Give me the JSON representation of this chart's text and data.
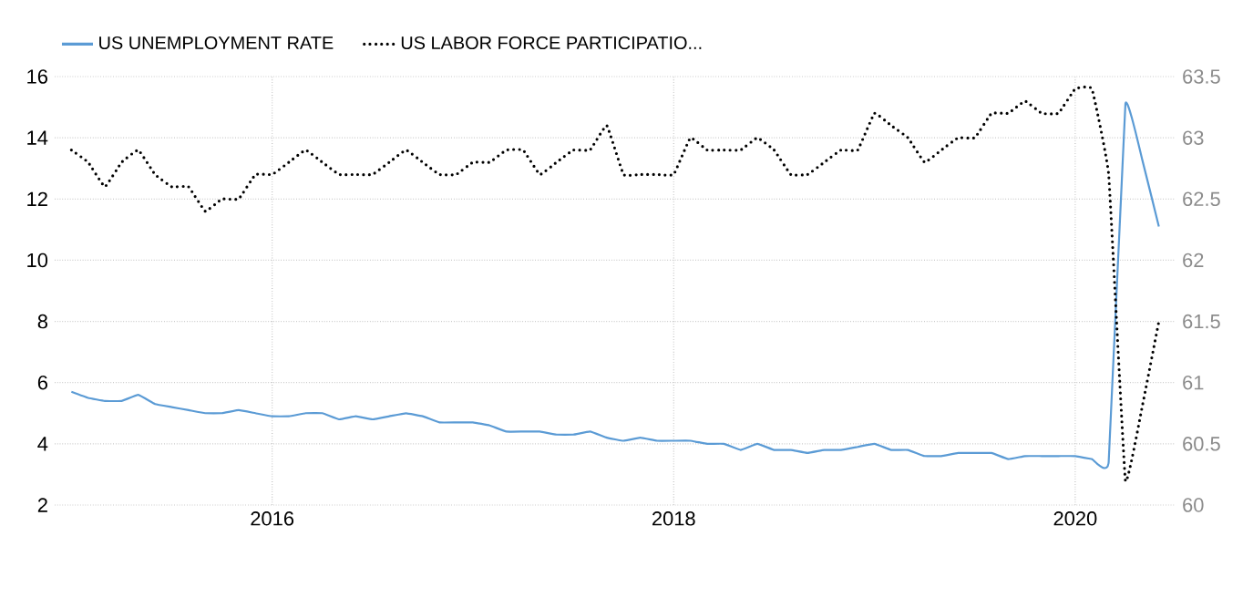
{
  "chart_data": {
    "type": "line",
    "grid": true,
    "legend": "top left",
    "x": [
      "2015-01",
      "2015-02",
      "2015-03",
      "2015-04",
      "2015-05",
      "2015-06",
      "2015-07",
      "2015-08",
      "2015-09",
      "2015-10",
      "2015-11",
      "2015-12",
      "2016-01",
      "2016-02",
      "2016-03",
      "2016-04",
      "2016-05",
      "2016-06",
      "2016-07",
      "2016-08",
      "2016-09",
      "2016-10",
      "2016-11",
      "2016-12",
      "2017-01",
      "2017-02",
      "2017-03",
      "2017-04",
      "2017-05",
      "2017-06",
      "2017-07",
      "2017-08",
      "2017-09",
      "2017-10",
      "2017-11",
      "2017-12",
      "2018-01",
      "2018-02",
      "2018-03",
      "2018-04",
      "2018-05",
      "2018-06",
      "2018-07",
      "2018-08",
      "2018-09",
      "2018-10",
      "2018-11",
      "2018-12",
      "2019-01",
      "2019-02",
      "2019-03",
      "2019-04",
      "2019-05",
      "2019-06",
      "2019-07",
      "2019-08",
      "2019-09",
      "2019-10",
      "2019-11",
      "2019-12",
      "2020-01",
      "2020-02",
      "2020-03",
      "2020-04",
      "2020-05",
      "2020-06"
    ],
    "xlim": [
      "2014-12",
      "2020-07"
    ],
    "xticks": [
      "2016",
      "2018",
      "2020"
    ],
    "ylim": [
      2,
      16
    ],
    "yticks": [
      2,
      4,
      6,
      8,
      10,
      12,
      14,
      16
    ],
    "y2lim": [
      60,
      63.5
    ],
    "y2ticks": [
      60,
      60.5,
      61,
      61.5,
      62,
      62.5,
      63,
      63.5
    ],
    "series": [
      {
        "name": "US UNEMPLOYMENT RATE",
        "color": "#5b9bd5",
        "line_style": "solid",
        "values": [
          5.7,
          5.5,
          5.4,
          5.4,
          5.6,
          5.3,
          5.2,
          5.1,
          5.0,
          5.0,
          5.1,
          5.0,
          4.9,
          4.9,
          5.0,
          5.0,
          4.8,
          4.9,
          4.8,
          4.9,
          5.0,
          4.9,
          4.7,
          4.7,
          4.7,
          4.6,
          4.4,
          4.4,
          4.4,
          4.3,
          4.3,
          4.4,
          4.2,
          4.1,
          4.2,
          4.1,
          4.1,
          4.1,
          4.0,
          4.0,
          3.8,
          4.0,
          3.8,
          3.8,
          3.7,
          3.8,
          3.8,
          3.9,
          4.0,
          3.8,
          3.8,
          3.6,
          3.6,
          3.7,
          3.7,
          3.7,
          3.5,
          3.6,
          3.6,
          3.6,
          3.6,
          3.5,
          3.4,
          15.1,
          13.3,
          11.1
        ]
      },
      {
        "name": "US LABOR FORCE PARTICIPATIO...",
        "color": "#000000",
        "line_style": "dotted",
        "axis": "y2",
        "values": [
          62.9,
          62.8,
          62.6,
          62.8,
          62.9,
          62.7,
          62.6,
          62.6,
          62.4,
          62.5,
          62.5,
          62.7,
          62.7,
          62.8,
          62.9,
          62.8,
          62.7,
          62.7,
          62.7,
          62.8,
          62.9,
          62.8,
          62.7,
          62.7,
          62.8,
          62.8,
          62.9,
          62.9,
          62.7,
          62.8,
          62.9,
          62.9,
          63.1,
          62.7,
          62.7,
          62.7,
          62.7,
          63.0,
          62.9,
          62.9,
          62.9,
          63.0,
          62.9,
          62.7,
          62.7,
          62.8,
          62.9,
          62.9,
          63.2,
          63.1,
          63.0,
          62.8,
          62.9,
          63.0,
          63.0,
          63.2,
          63.2,
          63.3,
          63.2,
          63.2,
          63.4,
          63.4,
          62.7,
          60.2,
          60.8,
          61.5
        ]
      }
    ]
  }
}
